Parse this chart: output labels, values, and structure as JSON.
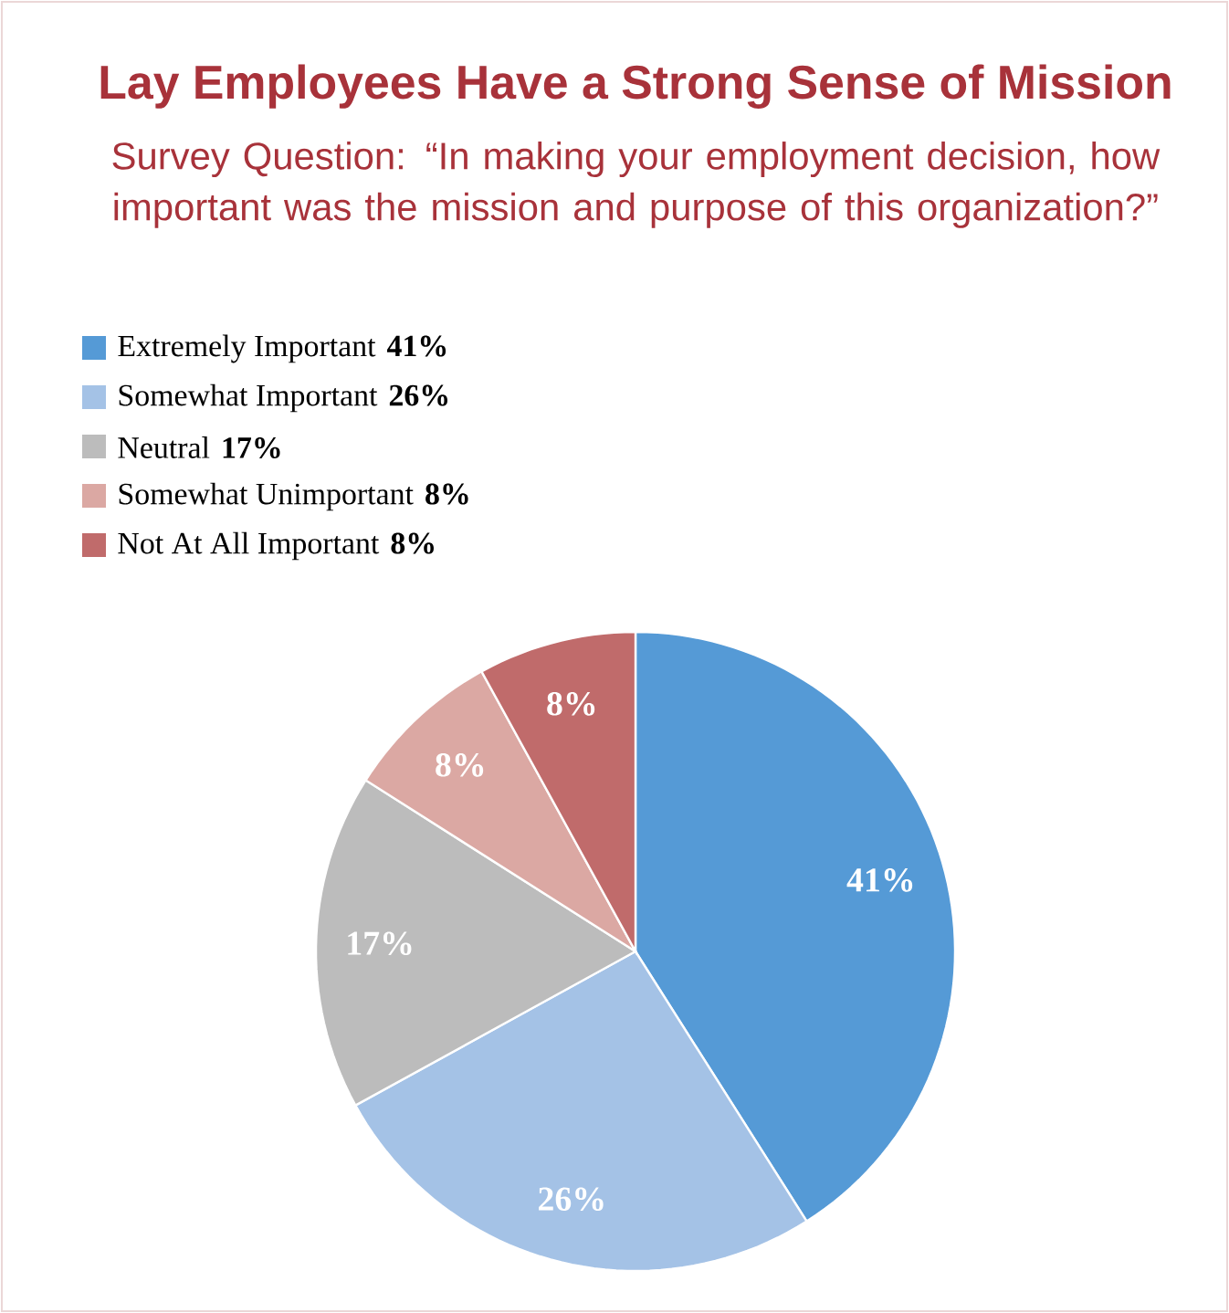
{
  "chart_data": {
    "type": "pie",
    "title": "Lay Employees Have a Strong Sense of Mission",
    "subtitle": "Survey Question: “In making your employment decision, how important was the mission and purpose of this organization?”",
    "categories": [
      "Extremely Important",
      "Somewhat Important",
      "Neutral",
      "Somewhat Unimportant",
      "Not At All Important"
    ],
    "values": [
      41,
      26,
      17,
      8,
      8
    ],
    "value_labels": [
      "41%",
      "26%",
      "17%",
      "8%",
      "8%"
    ],
    "colors": [
      "#559ad6",
      "#a4c2e6",
      "#bcbcbc",
      "#dba8a3",
      "#c06b6b"
    ],
    "legend": "top left"
  }
}
